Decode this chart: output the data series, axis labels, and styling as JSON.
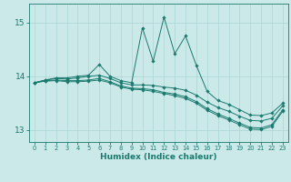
{
  "xlabel": "Humidex (Indice chaleur)",
  "background_color": "#cce9e9",
  "line_color": "#1a7a6e",
  "grid_color": "#aad4d4",
  "xlim": [
    -0.5,
    23.5
  ],
  "ylim": [
    12.78,
    15.35
  ],
  "yticks": [
    13,
    14,
    15
  ],
  "xticks": [
    0,
    1,
    2,
    3,
    4,
    5,
    6,
    7,
    8,
    9,
    10,
    11,
    12,
    13,
    14,
    15,
    16,
    17,
    18,
    19,
    20,
    21,
    22,
    23
  ],
  "lines": [
    {
      "x": [
        0,
        1,
        2,
        3,
        4,
        5,
        6,
        7,
        8,
        9,
        10,
        11,
        12,
        13,
        14,
        15,
        16,
        17,
        18,
        19,
        20,
        21,
        22,
        23
      ],
      "y": [
        13.88,
        13.93,
        13.97,
        13.97,
        14.0,
        14.02,
        14.22,
        14.0,
        13.92,
        13.88,
        14.9,
        14.28,
        15.1,
        14.42,
        14.75,
        14.2,
        13.72,
        13.55,
        13.48,
        13.38,
        13.28,
        13.27,
        13.32,
        13.5
      ]
    },
    {
      "x": [
        0,
        1,
        2,
        3,
        4,
        5,
        6,
        7,
        8,
        9,
        10,
        11,
        12,
        13,
        14,
        15,
        16,
        17,
        18,
        19,
        20,
        21,
        22,
        23
      ],
      "y": [
        13.88,
        13.93,
        13.96,
        13.95,
        13.97,
        14.0,
        14.02,
        13.96,
        13.88,
        13.84,
        13.84,
        13.83,
        13.8,
        13.78,
        13.74,
        13.65,
        13.52,
        13.42,
        13.35,
        13.26,
        13.18,
        13.17,
        13.22,
        13.45
      ]
    },
    {
      "x": [
        0,
        1,
        2,
        3,
        4,
        5,
        6,
        7,
        8,
        9,
        10,
        11,
        12,
        13,
        14,
        15,
        16,
        17,
        18,
        19,
        20,
        21,
        22,
        23
      ],
      "y": [
        13.88,
        13.92,
        13.93,
        13.92,
        13.92,
        13.93,
        13.96,
        13.9,
        13.82,
        13.78,
        13.77,
        13.75,
        13.7,
        13.67,
        13.62,
        13.53,
        13.4,
        13.3,
        13.22,
        13.13,
        13.05,
        13.04,
        13.1,
        13.38
      ]
    },
    {
      "x": [
        0,
        1,
        2,
        3,
        4,
        5,
        6,
        7,
        8,
        9,
        10,
        11,
        12,
        13,
        14,
        15,
        16,
        17,
        18,
        19,
        20,
        21,
        22,
        23
      ],
      "y": [
        13.88,
        13.91,
        13.92,
        13.9,
        13.9,
        13.91,
        13.93,
        13.88,
        13.8,
        13.76,
        13.75,
        13.72,
        13.68,
        13.64,
        13.59,
        13.5,
        13.37,
        13.27,
        13.19,
        13.1,
        13.02,
        13.01,
        13.07,
        13.35
      ]
    }
  ]
}
